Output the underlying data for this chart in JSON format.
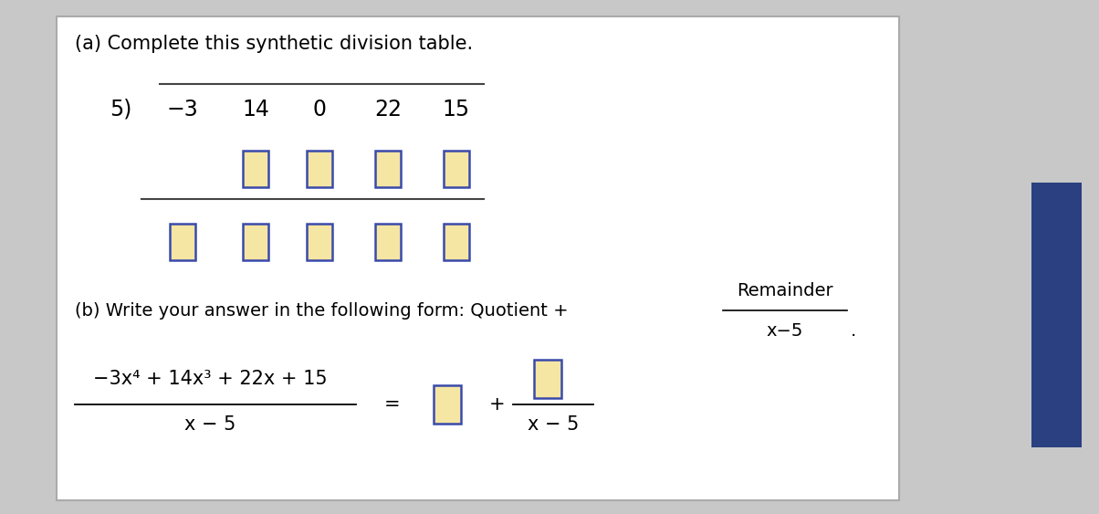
{
  "bg_color": "#c8c8c8",
  "box_fill": "#f5e6a3",
  "box_edge": "#3a4aaa",
  "white_card_fg": "white",
  "white_card_edge": "#999999",
  "title_a": "(a) Complete this synthetic division table.",
  "title_b_left": "(b) Write your answer in the following form: Quotient +",
  "remainder_top": "Remainder",
  "denom_b": "x−5",
  "divisor": "5)",
  "coeffs": [
    "−3",
    "14",
    "0",
    "22",
    "15"
  ],
  "lhs_num": "−3x",
  "lhs_num_sup4": "4",
  "lhs_mid": " + 14x",
  "lhs_mid_sup3": "3",
  "lhs_tail": " + 22x + 15",
  "lhs_den": "x − 5",
  "eq_sign": "=",
  "plus_sign": "+",
  "period": ".",
  "dark_rect_color": "#2a4080",
  "line_color": "#444444",
  "fs": 15
}
